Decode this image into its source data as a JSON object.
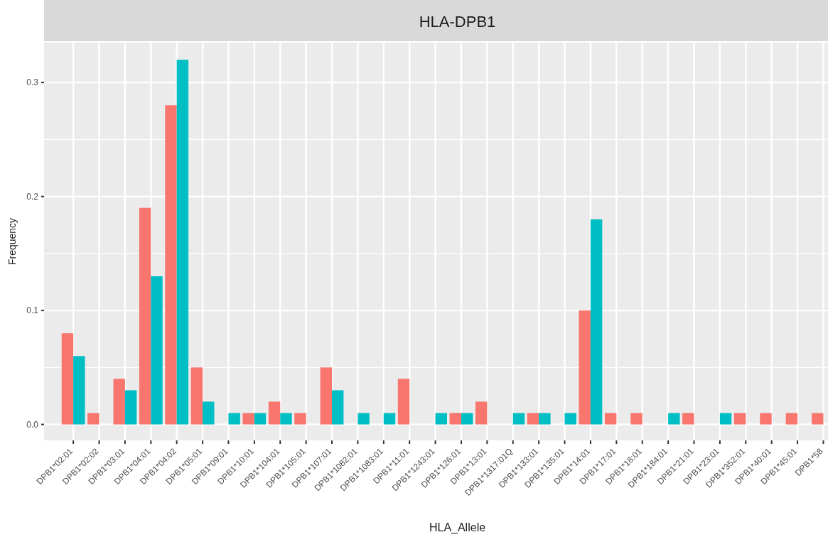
{
  "chart_data": {
    "type": "bar",
    "title": "HLA-DPB1",
    "xlabel": "HLA_Allele",
    "ylabel": "Frequency",
    "categories": [
      "DPB1*02:01",
      "DPB1*02:02",
      "DPB1*03:01",
      "DPB1*04:01",
      "DPB1*04:02",
      "DPB1*05:01",
      "DPB1*09:01",
      "DPB1*10:01",
      "DPB1*104:01",
      "DPB1*105:01",
      "DPB1*107:01",
      "DPB1*1082:01",
      "DPB1*1083:01",
      "DPB1*11:01",
      "DPB1*1243:01",
      "DPB1*126:01",
      "DPB1*13:01",
      "DPB1*1317:01Q",
      "DPB1*133:01",
      "DPB1*135:01",
      "DPB1*14:01",
      "DPB1*17:01",
      "DPB1*18:01",
      "DPB1*184:01",
      "DPB1*21:01",
      "DPB1*23:01",
      "DPB1*352:01",
      "DPB1*40:01",
      "DPB1*45:01",
      "DPB1*58"
    ],
    "series": [
      {
        "color": "#f8766d",
        "values": [
          0.08,
          0.01,
          0.04,
          0.19,
          0.28,
          0.05,
          null,
          0.01,
          0.02,
          0.01,
          0.05,
          null,
          null,
          0.04,
          null,
          0.01,
          0.02,
          null,
          0.01,
          null,
          0.1,
          0.01,
          0.01,
          null,
          0.01,
          null,
          0.01,
          0.01,
          0.01,
          0.01
        ]
      },
      {
        "color": "#00bfc4",
        "values": [
          0.06,
          null,
          0.03,
          0.13,
          0.32,
          0.02,
          0.01,
          0.01,
          0.01,
          null,
          0.03,
          0.01,
          0.01,
          null,
          0.01,
          0.01,
          null,
          0.01,
          0.01,
          0.01,
          0.18,
          null,
          null,
          0.01,
          null,
          0.01,
          null,
          null,
          null,
          null
        ]
      }
    ],
    "ylim": [
      -0.014,
      0.335
    ],
    "yticks": [
      {
        "value": 0,
        "label": "0.0"
      },
      {
        "value": 0.05,
        "label": null
      },
      0.1,
      {
        "value": 0.15,
        "label": null
      },
      0.2,
      {
        "value": 0.25,
        "label": null
      },
      0.3
    ],
    "grid": true
  }
}
